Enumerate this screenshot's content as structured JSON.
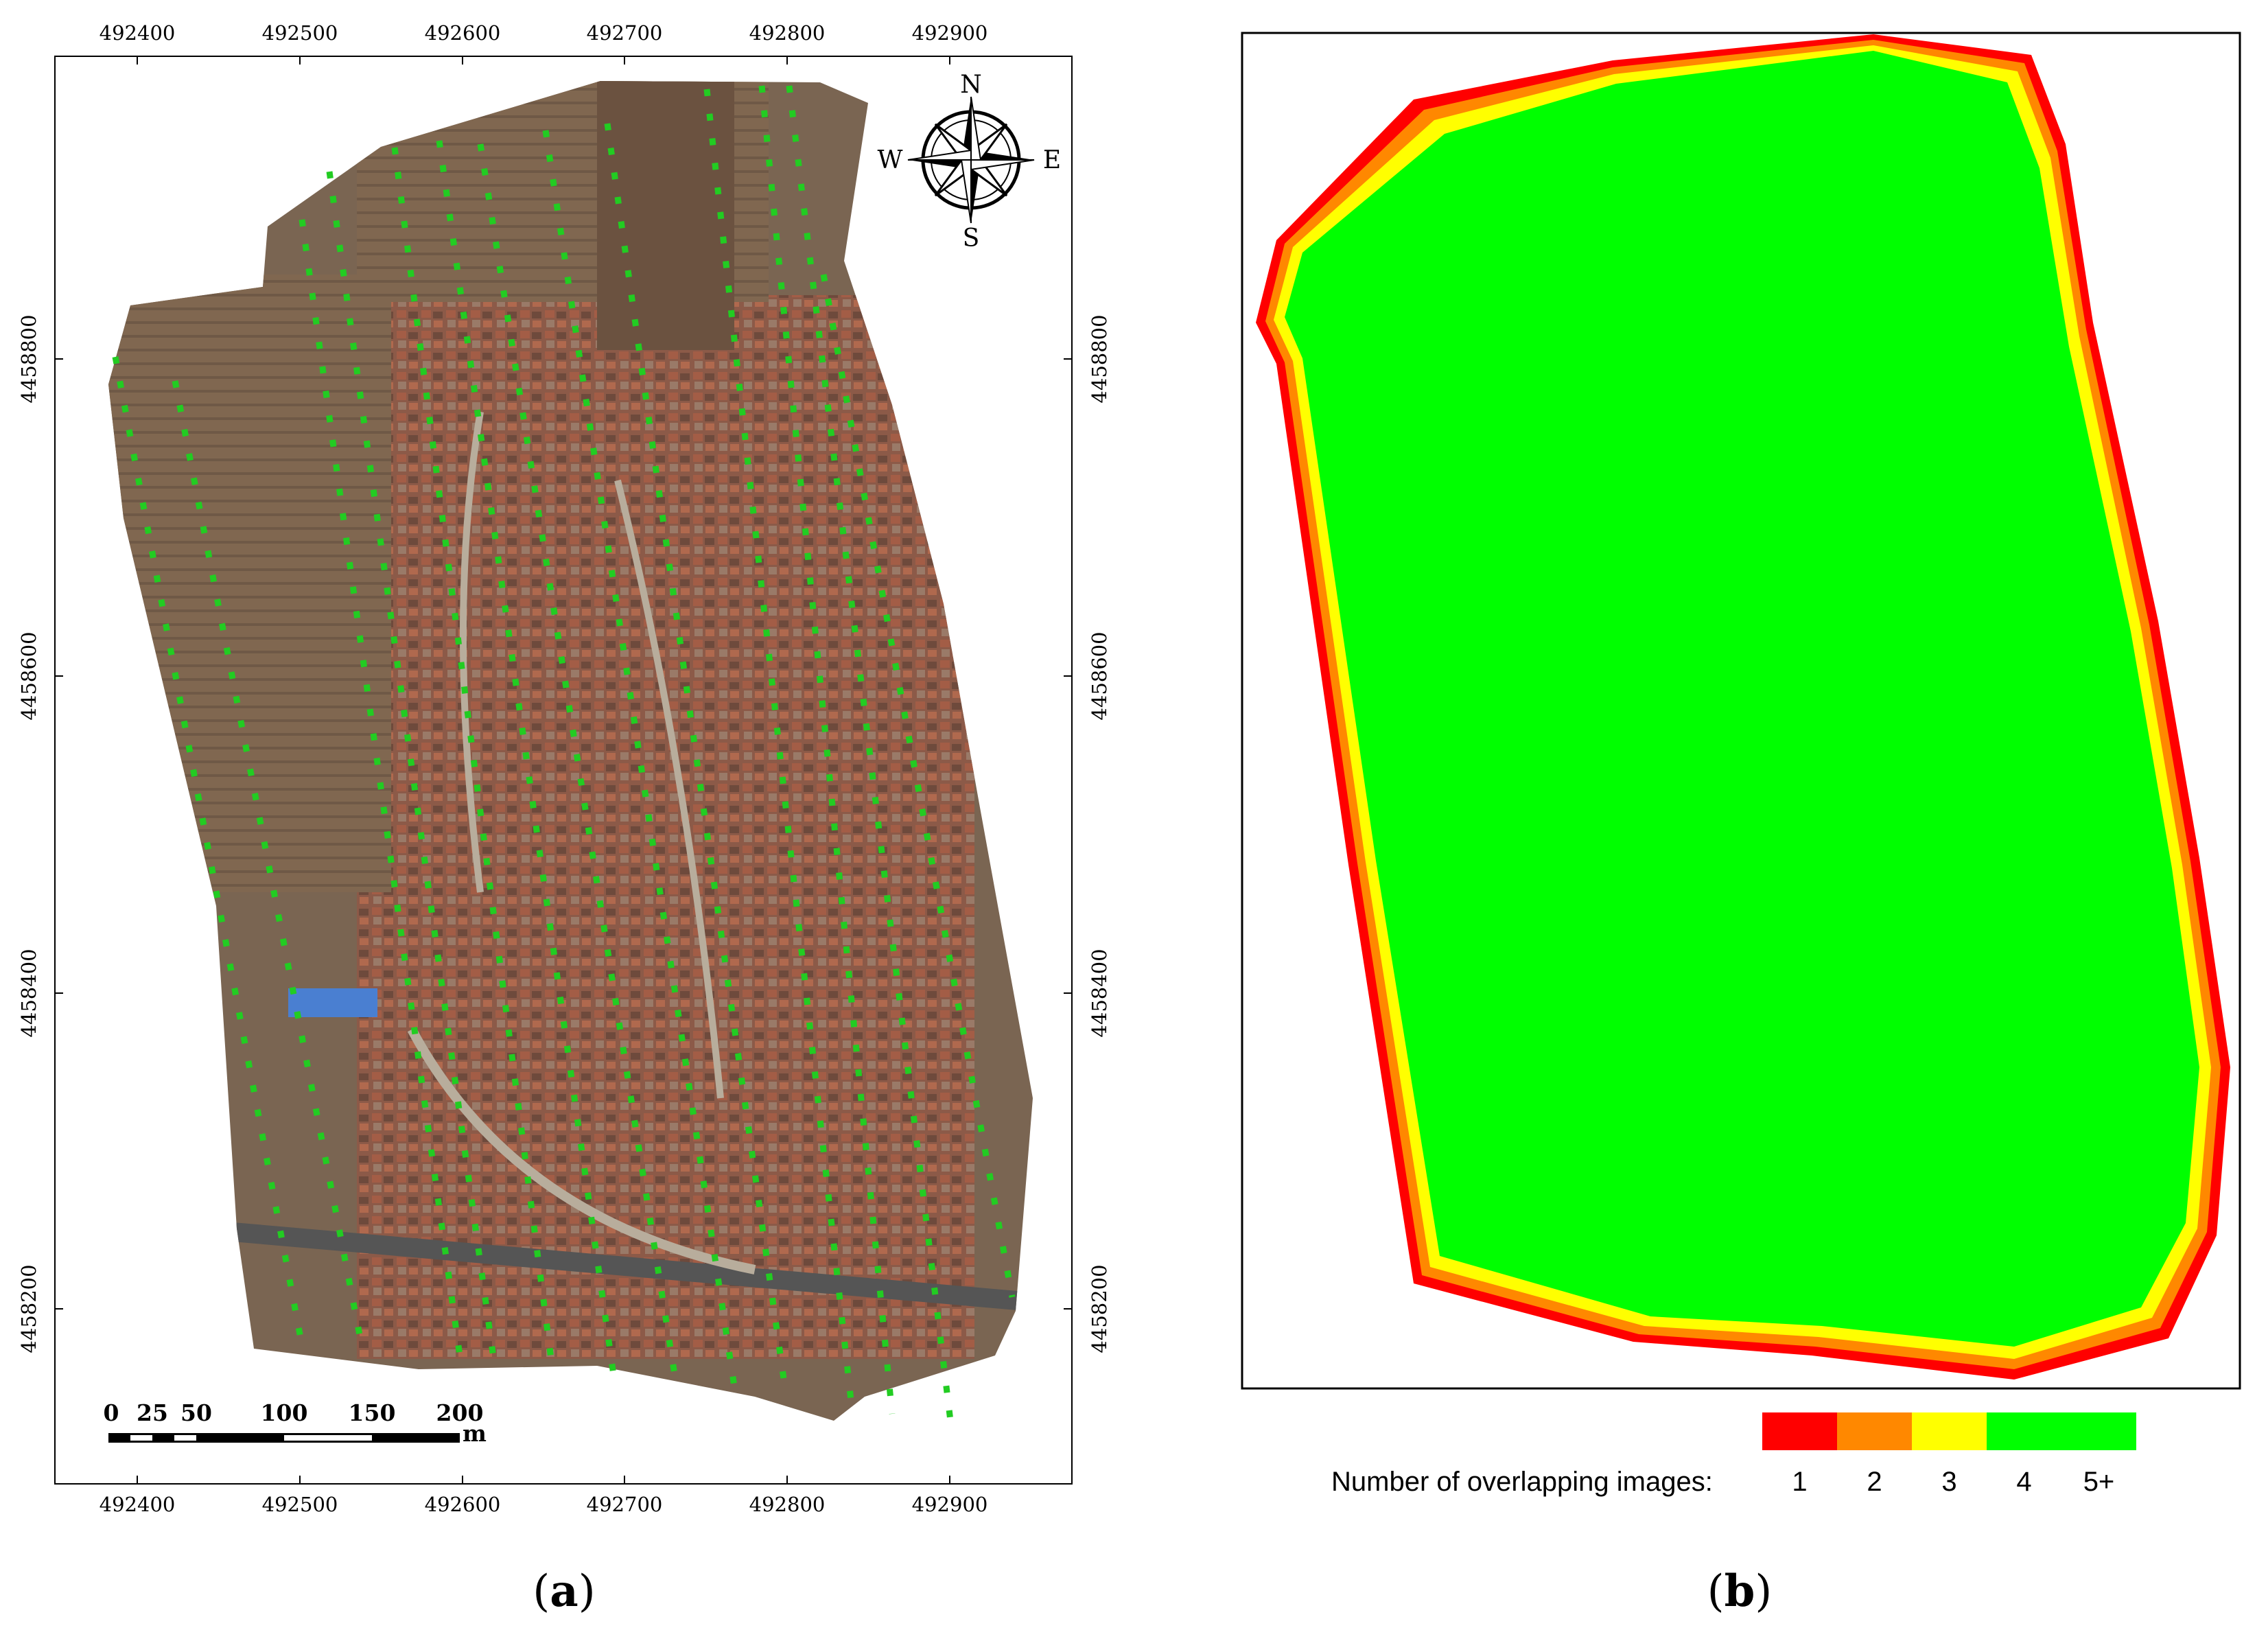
{
  "panel_a": {
    "label_open": "(",
    "label_letter": "a",
    "label_close": ")",
    "x_ticks": [
      "492400",
      "492500",
      "492600",
      "492700",
      "492800",
      "492900"
    ],
    "y_ticks": [
      "4458800",
      "4458600",
      "4458400",
      "4458200"
    ],
    "compass": {
      "n": "N",
      "s": "S",
      "e": "E",
      "w": "W"
    },
    "scale_bar": {
      "labels": [
        "0",
        "25",
        "50",
        "100",
        "150",
        "200"
      ],
      "unit": "m"
    },
    "colors": {
      "flight_marker": "#22cc22",
      "imagery_base": "#7a6552"
    }
  },
  "panel_b": {
    "label_open": "(",
    "label_letter": "b",
    "label_close": ")",
    "legend_title": "Number of overlapping images:",
    "legend": [
      {
        "label": "1",
        "color": "#ff0000"
      },
      {
        "label": "2",
        "color": "#ff8800"
      },
      {
        "label": "3",
        "color": "#ffff00"
      },
      {
        "label": "4",
        "color": "#00ff00"
      },
      {
        "label": "5+",
        "color": "#00ff00"
      }
    ]
  }
}
